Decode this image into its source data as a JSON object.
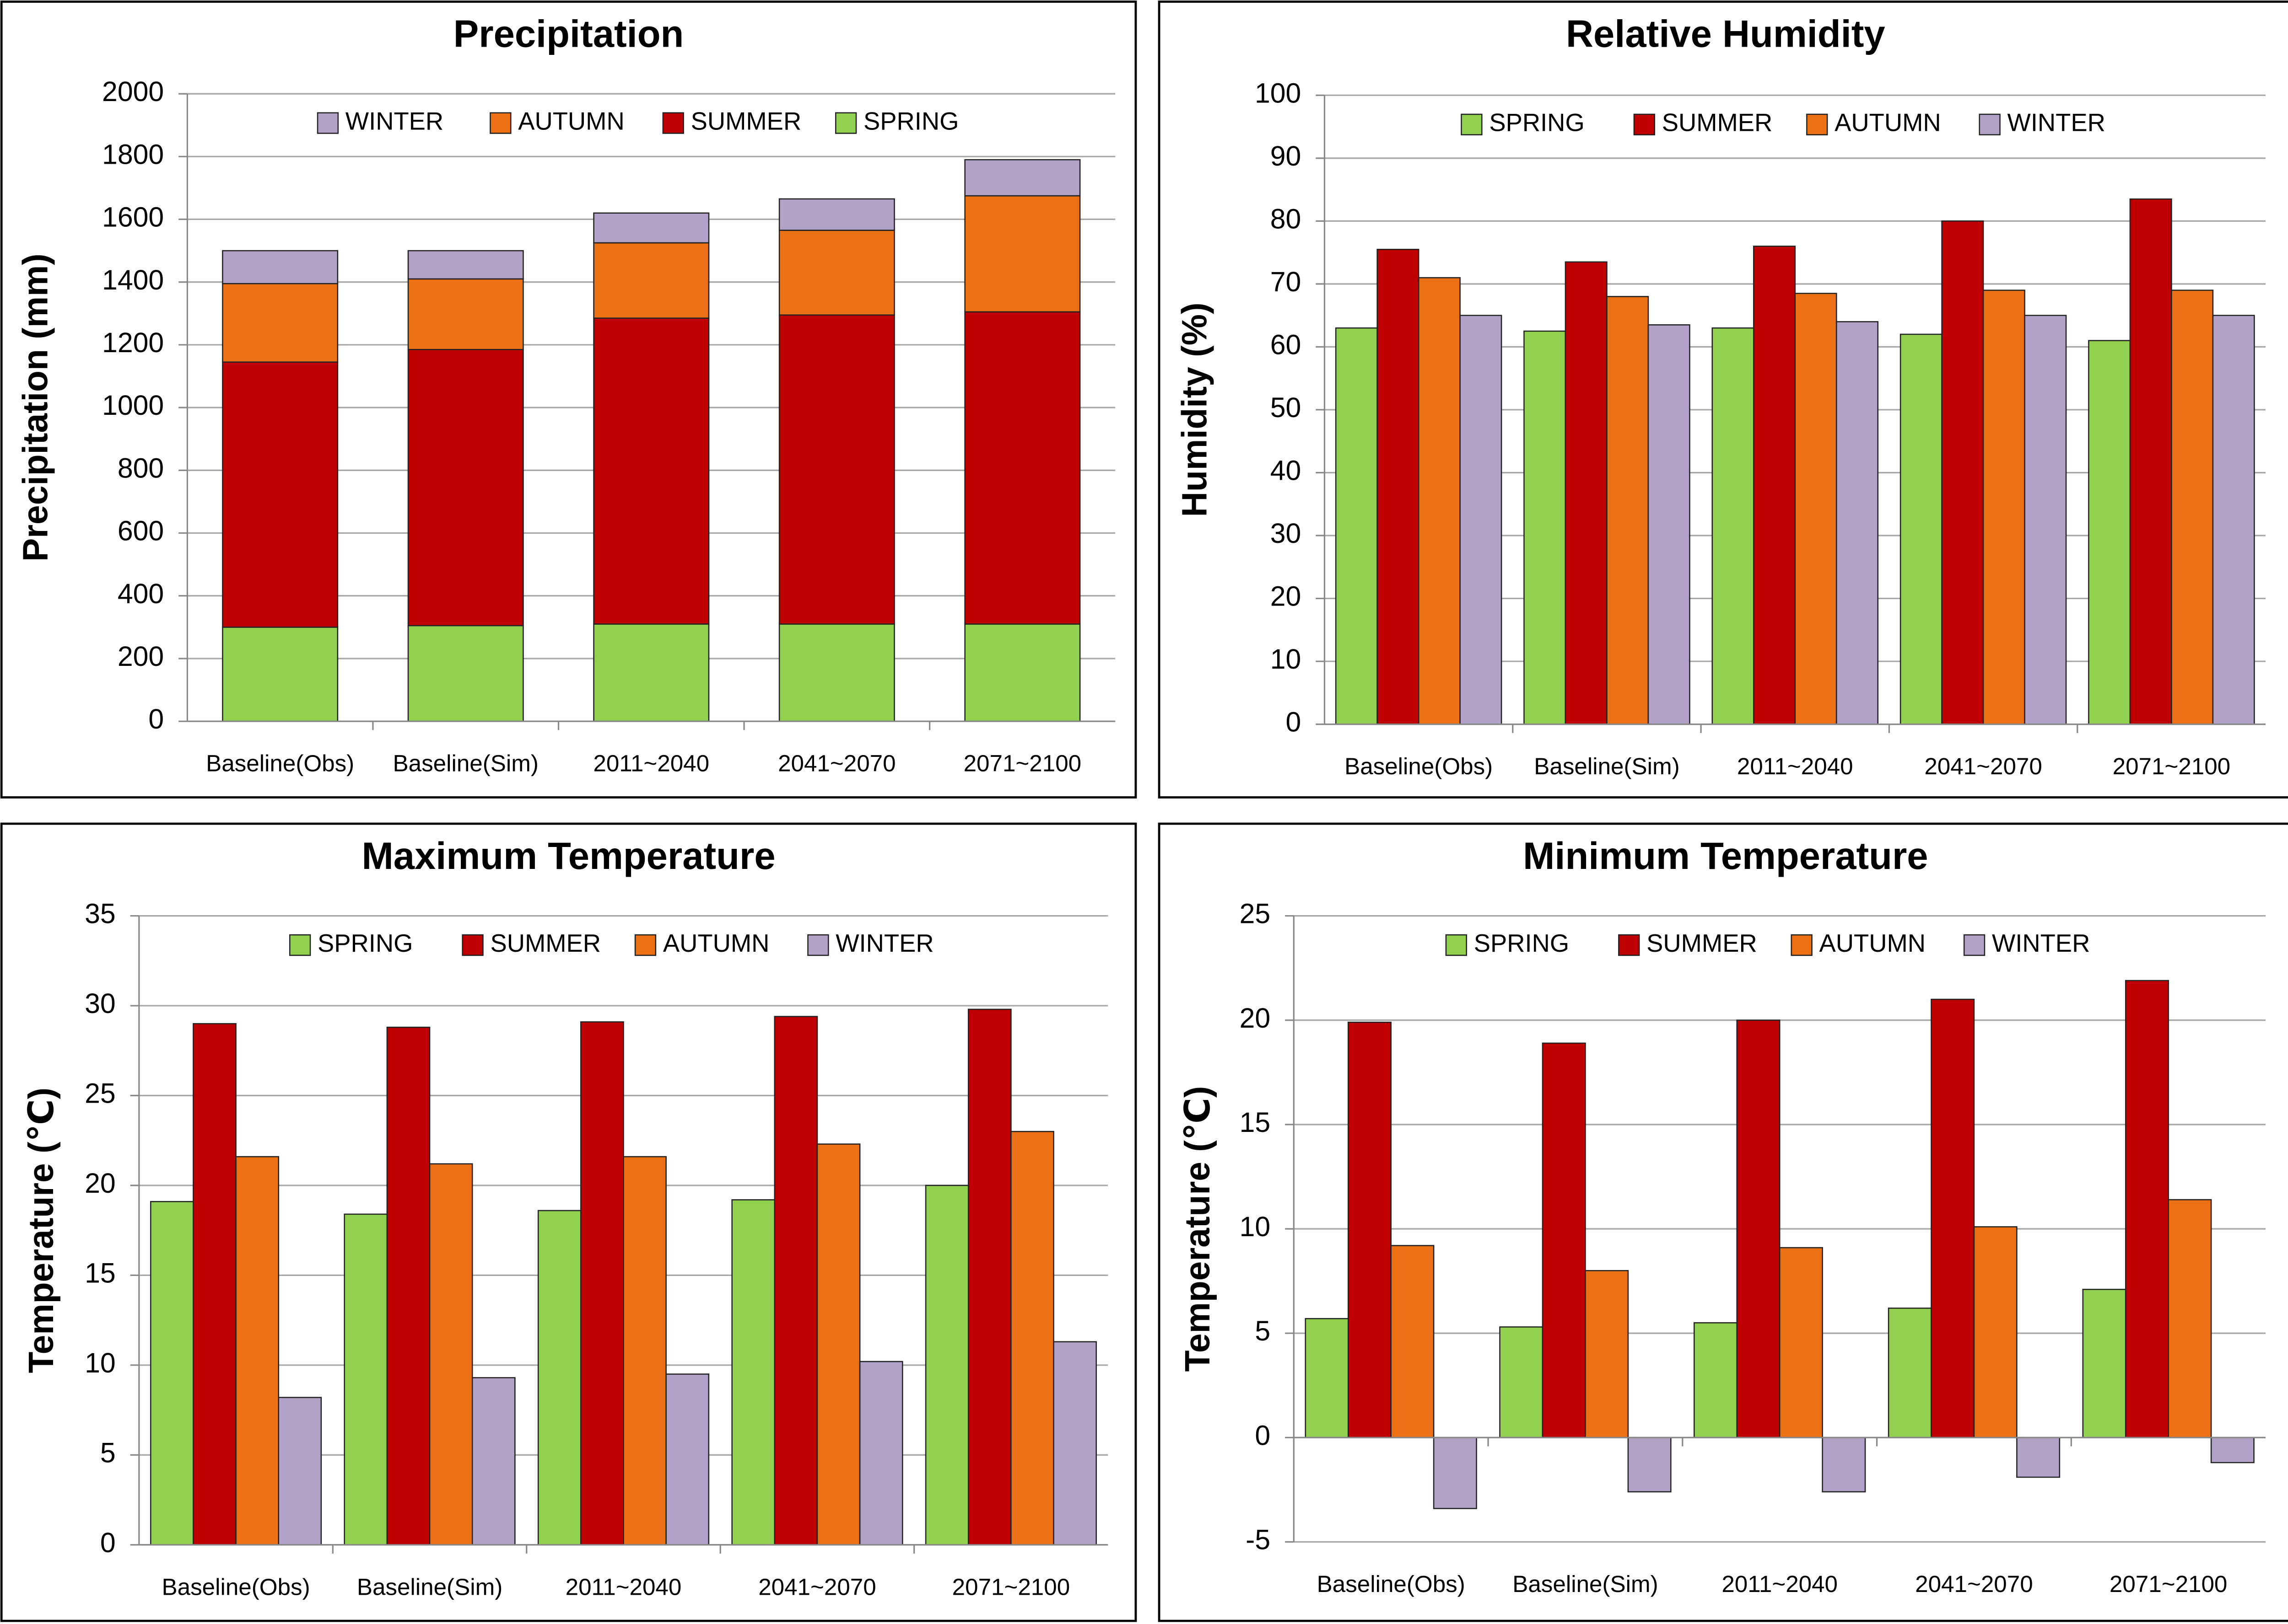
{
  "chart_data": [
    {
      "type": "bar",
      "stacked": true,
      "title": "Precipitation",
      "y_label": "Precipitation (mm)",
      "categories": [
        "Baseline(Obs)",
        "Baseline(Sim)",
        "2011~2040",
        "2041~2070",
        "2071~2100"
      ],
      "series": [
        {
          "name": "WINTER",
          "color": "#b3a2c7",
          "values": [
            105,
            90,
            95,
            100,
            115
          ]
        },
        {
          "name": "AUTUMN",
          "color": "#ec7014",
          "values": [
            250,
            225,
            240,
            270,
            370
          ]
        },
        {
          "name": "SUMMER",
          "color": "#c00000",
          "values": [
            845,
            880,
            975,
            985,
            995
          ]
        },
        {
          "name": "SPRING",
          "color": "#92d050",
          "values": [
            300,
            305,
            310,
            310,
            310
          ]
        }
      ],
      "ylim": [
        0,
        2000
      ],
      "yticks": [
        0,
        200,
        400,
        600,
        800,
        1000,
        1200,
        1400,
        1600,
        1800,
        2000
      ],
      "grid": true
    },
    {
      "type": "bar",
      "stacked": false,
      "title": "Relative Humidity",
      "y_label": "Humidity (%)",
      "categories": [
        "Baseline(Obs)",
        "Baseline(Sim)",
        "2011~2040",
        "2041~2070",
        "2071~2100"
      ],
      "series": [
        {
          "name": "SPRING",
          "color": "#92d050",
          "values": [
            63,
            62.5,
            63,
            62,
            61
          ]
        },
        {
          "name": "SUMMER",
          "color": "#c00000",
          "values": [
            75.5,
            73.5,
            76,
            80,
            83.5
          ]
        },
        {
          "name": "AUTUMN",
          "color": "#ec7014",
          "values": [
            71,
            68,
            68.5,
            69,
            69
          ]
        },
        {
          "name": "WINTER",
          "color": "#b3a2c7",
          "values": [
            65,
            63.5,
            64,
            65,
            65
          ]
        }
      ],
      "ylim": [
        0,
        100
      ],
      "yticks": [
        0,
        10,
        20,
        30,
        40,
        50,
        60,
        70,
        80,
        90,
        100
      ],
      "grid": true
    },
    {
      "type": "bar",
      "stacked": false,
      "title": "Maximum Temperature",
      "y_label": "Temperature (℃)",
      "categories": [
        "Baseline(Obs)",
        "Baseline(Sim)",
        "2011~2040",
        "2041~2070",
        "2071~2100"
      ],
      "series": [
        {
          "name": "SPRING",
          "color": "#92d050",
          "values": [
            19.1,
            18.4,
            18.6,
            19.2,
            20.0
          ]
        },
        {
          "name": "SUMMER",
          "color": "#c00000",
          "values": [
            29.0,
            28.8,
            29.1,
            29.4,
            29.8
          ]
        },
        {
          "name": "AUTUMN",
          "color": "#ec7014",
          "values": [
            21.6,
            21.2,
            21.6,
            22.3,
            23.0
          ]
        },
        {
          "name": "WINTER",
          "color": "#b3a2c7",
          "values": [
            8.2,
            9.3,
            9.5,
            10.2,
            11.3
          ]
        }
      ],
      "ylim": [
        0,
        35
      ],
      "yticks": [
        0,
        5,
        10,
        15,
        20,
        25,
        30,
        35
      ],
      "grid": true
    },
    {
      "type": "bar",
      "stacked": false,
      "title": "Minimum Temperature",
      "y_label": "Temperature (℃)",
      "categories": [
        "Baseline(Obs)",
        "Baseline(Sim)",
        "2011~2040",
        "2041~2070",
        "2071~2100"
      ],
      "series": [
        {
          "name": "SPRING",
          "color": "#92d050",
          "values": [
            5.7,
            5.3,
            5.5,
            6.2,
            7.1
          ]
        },
        {
          "name": "SUMMER",
          "color": "#c00000",
          "values": [
            19.9,
            18.9,
            20.0,
            21.0,
            21.9
          ]
        },
        {
          "name": "AUTUMN",
          "color": "#ec7014",
          "values": [
            9.2,
            8.0,
            9.1,
            10.1,
            11.4
          ]
        },
        {
          "name": "WINTER",
          "color": "#b3a2c7",
          "values": [
            -3.4,
            -2.6,
            -2.6,
            -1.9,
            -1.2
          ]
        }
      ],
      "ylim": [
        -5,
        25
      ],
      "yticks": [
        -5,
        0,
        5,
        10,
        15,
        20,
        25
      ],
      "grid": true
    }
  ]
}
